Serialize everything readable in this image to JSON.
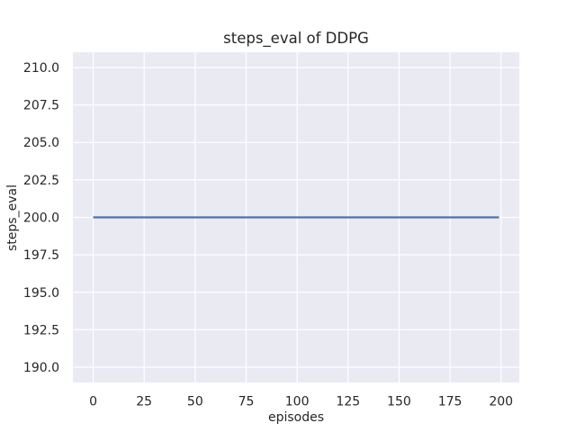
{
  "chart_data": {
    "type": "line",
    "title": "steps_eval of DDPG",
    "xlabel": "episodes",
    "ylabel": "steps_eval",
    "series": [
      {
        "name": "steps_eval",
        "x": [
          0,
          199
        ],
        "y": [
          200,
          200
        ],
        "note": "constant value 200.0 for every evaluation episode from 0 to 199",
        "color": "#4c72b0"
      }
    ],
    "x_ticks": [
      0,
      25,
      50,
      75,
      100,
      125,
      150,
      175,
      200
    ],
    "x_tick_labels": [
      "0",
      "25",
      "50",
      "75",
      "100",
      "125",
      "150",
      "175",
      "200"
    ],
    "y_ticks": [
      190.0,
      192.5,
      195.0,
      197.5,
      200.0,
      202.5,
      205.0,
      207.5,
      210.0
    ],
    "y_tick_labels": [
      "190.0",
      "192.5",
      "195.0",
      "197.5",
      "200.0",
      "202.5",
      "205.0",
      "207.5",
      "210.0"
    ],
    "xlim": [
      -9.95,
      208.95
    ],
    "ylim": [
      188.98,
      211.02
    ],
    "grid": true,
    "legend": false,
    "style": {
      "plot_bg": "#eaeaf2",
      "figure_bg": "#ffffff",
      "grid_color": "#ffffff",
      "text_color": "#262626",
      "grid_linewidth": 1.2,
      "line_linewidth": 2.2
    }
  }
}
